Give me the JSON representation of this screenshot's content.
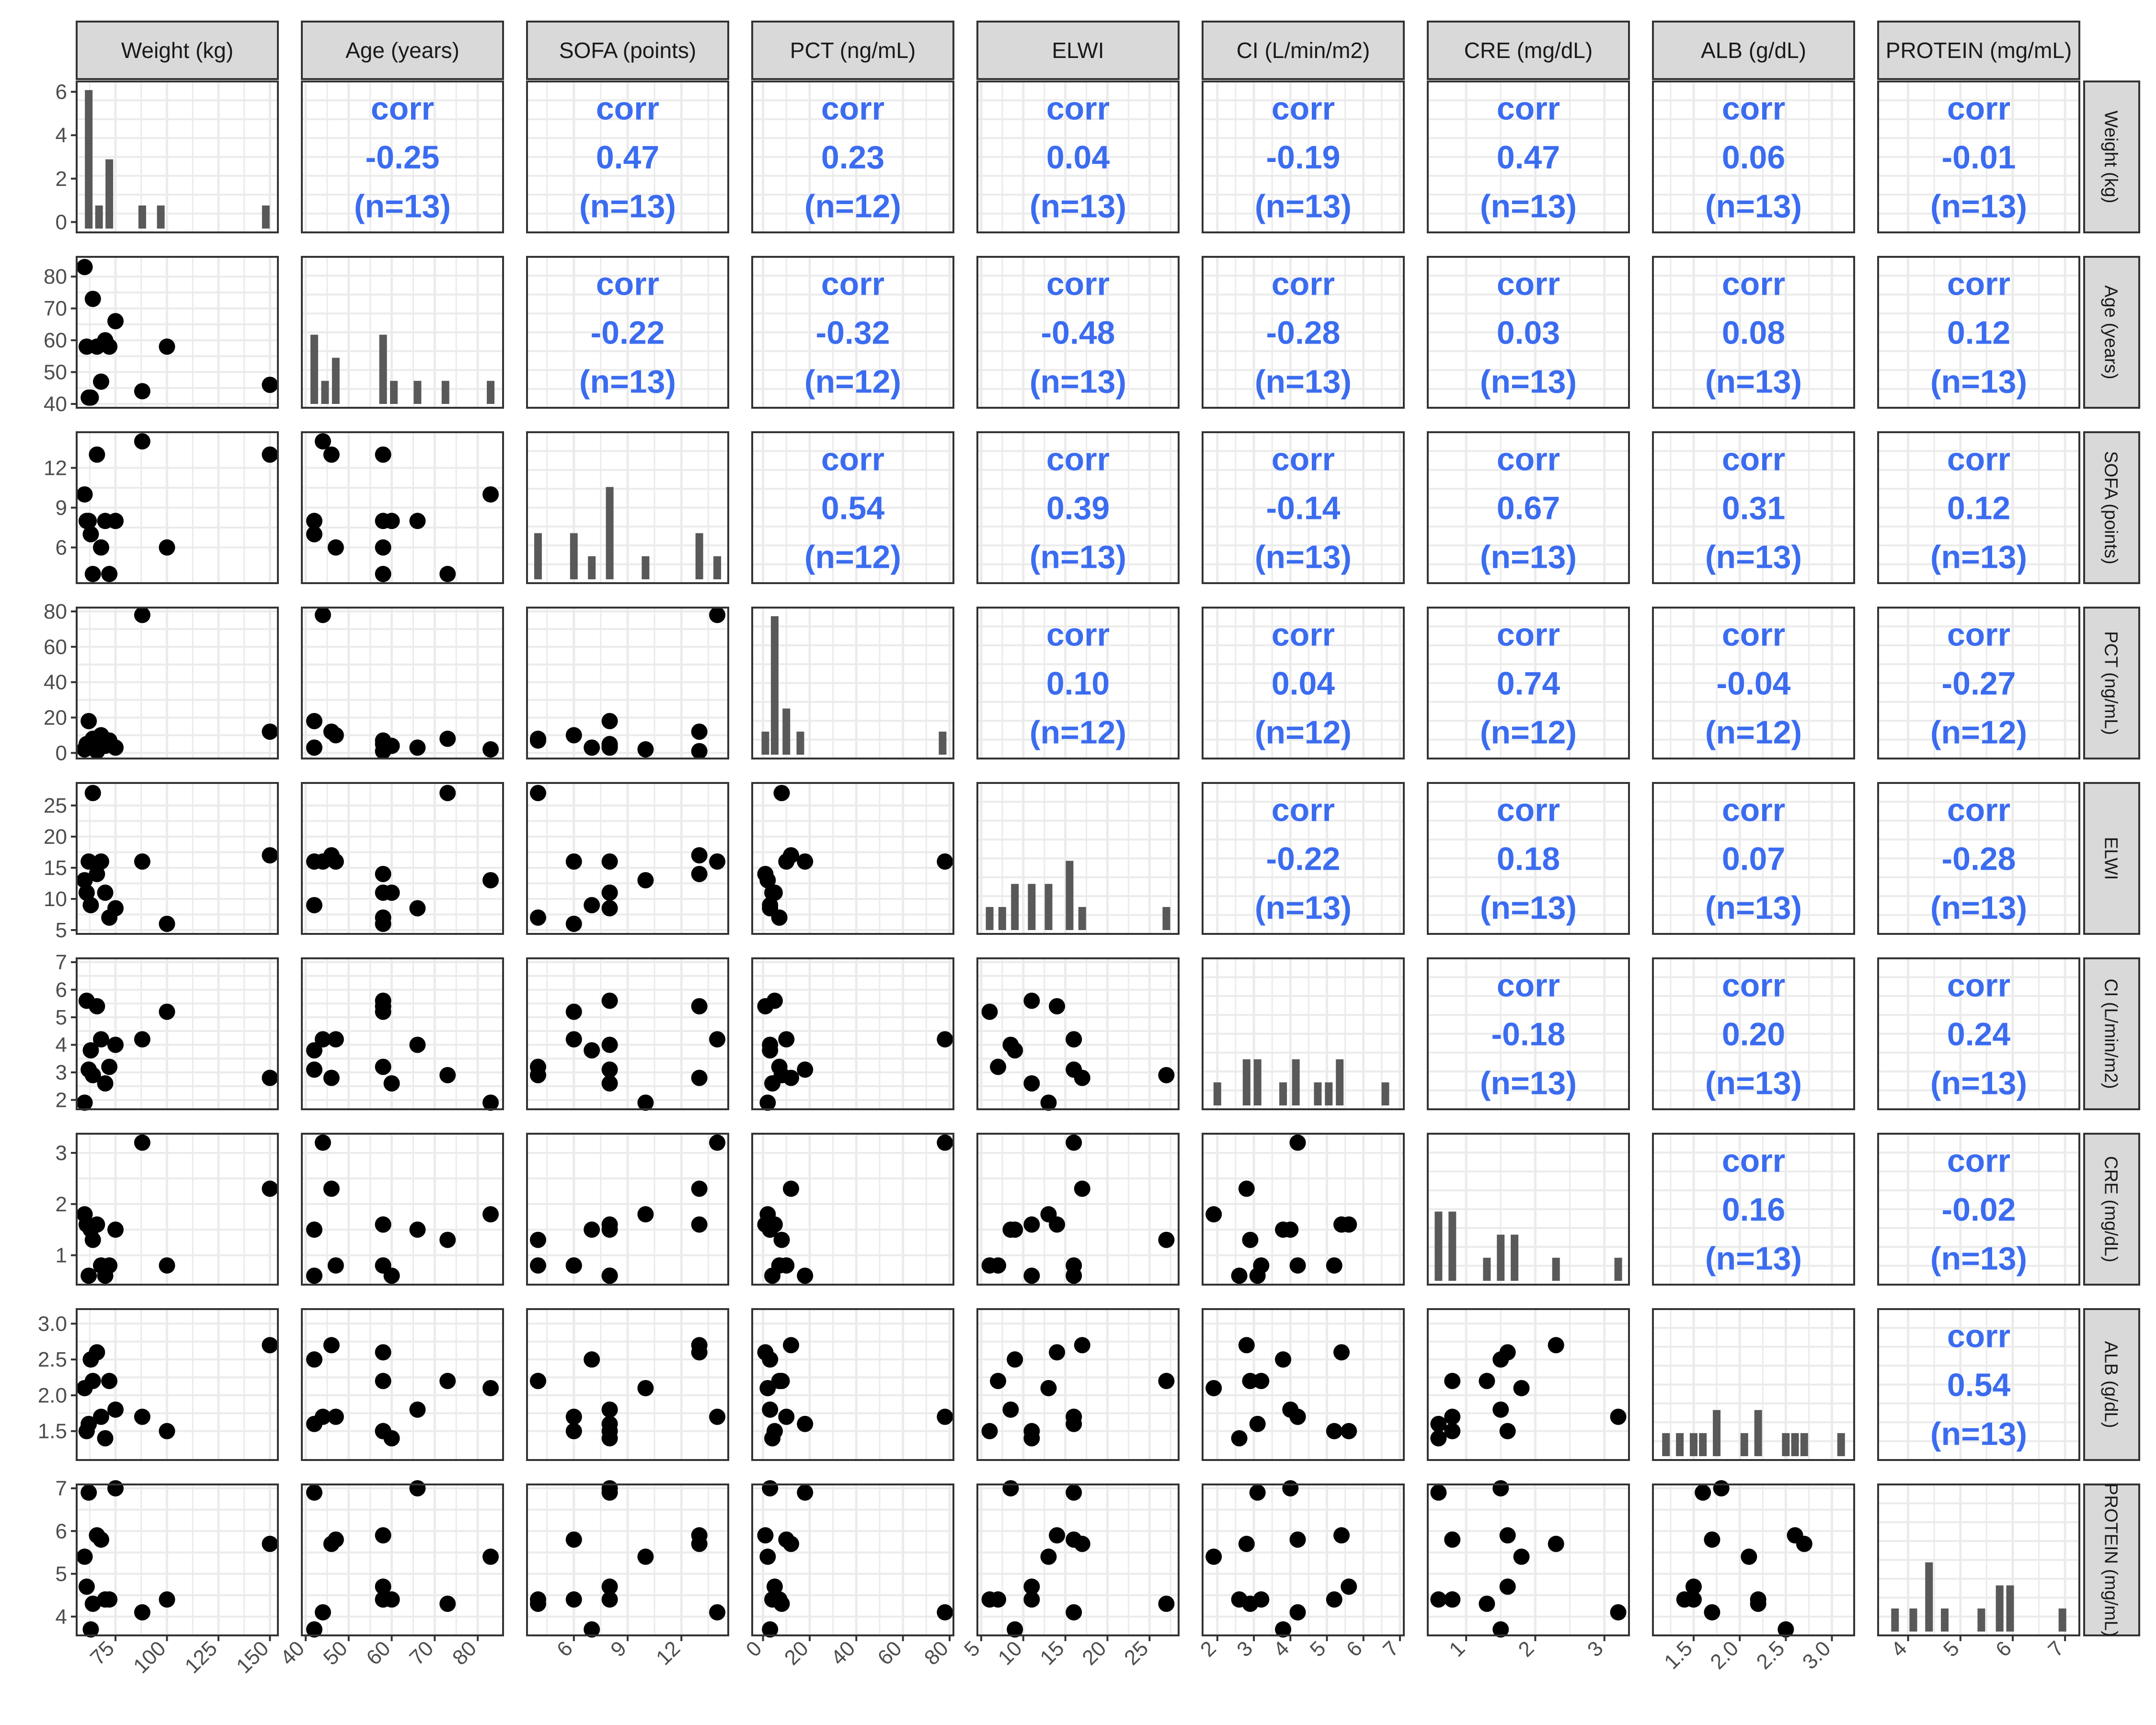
{
  "chart_data": {
    "type": "scatter-matrix",
    "variables": [
      {
        "name": "Weight (kg)",
        "range": [
          58,
          152
        ],
        "ticks": [
          75,
          100,
          125,
          150
        ],
        "tick_labels": [
          "75",
          "100",
          "125",
          "150"
        ],
        "y_ticks": [
          0,
          2,
          4,
          6
        ],
        "y_tick_labels": [
          "0",
          "2",
          "4",
          "6"
        ]
      },
      {
        "name": "Age (years)",
        "range": [
          40,
          85
        ],
        "ticks": [
          40,
          50,
          60,
          70,
          80
        ],
        "tick_labels": [
          "40",
          "50",
          "60",
          "70",
          "80"
        ]
      },
      {
        "name": "SOFA (points)",
        "range": [
          3.6,
          14.4
        ],
        "ticks": [
          6,
          9,
          12
        ],
        "tick_labels": [
          "6",
          "9",
          "12"
        ]
      },
      {
        "name": "PCT (ng/mL)",
        "range": [
          -3,
          80
        ],
        "ticks": [
          0,
          20,
          40,
          60,
          80
        ],
        "tick_labels": [
          "0",
          "20",
          "40",
          "60",
          "80"
        ]
      },
      {
        "name": "ELWI",
        "range": [
          5,
          28
        ],
        "ticks": [
          5,
          10,
          15,
          20,
          25
        ],
        "tick_labels": [
          "5",
          "10",
          "15",
          "20",
          "25"
        ]
      },
      {
        "name": "CI (L/min/m2)",
        "range": [
          1.7,
          7.0
        ],
        "ticks": [
          2,
          3,
          4,
          5,
          6,
          7
        ],
        "tick_labels": [
          "2",
          "3",
          "4",
          "5",
          "6",
          "7"
        ]
      },
      {
        "name": "CRE (mg/dL)",
        "range": [
          0.5,
          3.3
        ],
        "ticks": [
          1,
          2,
          3
        ],
        "tick_labels": [
          "1",
          "2",
          "3"
        ]
      },
      {
        "name": "ALB (g/dL)",
        "range": [
          1.1,
          3.2
        ],
        "ticks": [
          1.5,
          2.0,
          2.5,
          3.0
        ],
        "tick_labels": [
          "1.5",
          "2.0",
          "2.5",
          "3.0"
        ]
      },
      {
        "name": "PROTEIN (mg/mL)",
        "range": [
          3.5,
          7.2
        ],
        "ticks": [
          4,
          5,
          6,
          7
        ],
        "tick_labels": [
          "4",
          "5",
          "6",
          "7"
        ]
      }
    ],
    "observations": [
      {
        "Weight (kg)": 60,
        "Age (years)": 83,
        "SOFA (points)": 10,
        "PCT (ng/mL)": 2,
        "ELWI": 13,
        "CI (L/min/m2)": 1.9,
        "CRE (mg/dL)": 1.8,
        "ALB (g/dL)": 2.1,
        "PROTEIN (mg/mL)": 5.4
      },
      {
        "Weight (kg)": 61,
        "Age (years)": 58,
        "SOFA (points)": 8,
        "PCT (ng/mL)": 5,
        "ELWI": 11,
        "CI (L/min/m2)": 5.6,
        "CRE (mg/dL)": 1.6,
        "ALB (g/dL)": 1.5,
        "PROTEIN (mg/mL)": 4.7
      },
      {
        "Weight (kg)": 62,
        "Age (years)": 42,
        "SOFA (points)": 8,
        "PCT (ng/mL)": 18,
        "ELWI": 16,
        "CI (L/min/m2)": 3.1,
        "CRE (mg/dL)": 0.6,
        "ALB (g/dL)": 1.6,
        "PROTEIN (mg/mL)": 6.9
      },
      {
        "Weight (kg)": 63,
        "Age (years)": 42,
        "SOFA (points)": 7,
        "PCT (ng/mL)": 3,
        "ELWI": 9,
        "CI (L/min/m2)": 3.8,
        "CRE (mg/dL)": 1.5,
        "ALB (g/dL)": 2.5,
        "PROTEIN (mg/mL)": 3.7
      },
      {
        "Weight (kg)": 64,
        "Age (years)": 73,
        "SOFA (points)": 4,
        "PCT (ng/mL)": 8,
        "ELWI": 27,
        "CI (L/min/m2)": 2.9,
        "CRE (mg/dL)": 1.3,
        "ALB (g/dL)": 2.2,
        "PROTEIN (mg/mL)": 4.3
      },
      {
        "Weight (kg)": 66,
        "Age (years)": 58,
        "SOFA (points)": 13,
        "PCT (ng/mL)": 1,
        "ELWI": 14,
        "CI (L/min/m2)": 5.4,
        "CRE (mg/dL)": 1.6,
        "ALB (g/dL)": 2.6,
        "PROTEIN (mg/mL)": 5.9
      },
      {
        "Weight (kg)": 68,
        "Age (years)": 47,
        "SOFA (points)": 6,
        "PCT (ng/mL)": 10,
        "ELWI": 16,
        "CI (L/min/m2)": 4.2,
        "CRE (mg/dL)": 0.8,
        "ALB (g/dL)": 1.7,
        "PROTEIN (mg/mL)": 5.8
      },
      {
        "Weight (kg)": 70,
        "Age (years)": 60,
        "SOFA (points)": 8,
        "PCT (ng/mL)": 4,
        "ELWI": 11,
        "CI (L/min/m2)": 2.6,
        "CRE (mg/dL)": 0.6,
        "ALB (g/dL)": 1.4,
        "PROTEIN (mg/mL)": 4.4
      },
      {
        "Weight (kg)": 72,
        "Age (years)": 58,
        "SOFA (points)": 4,
        "PCT (ng/mL)": 7,
        "ELWI": 7,
        "CI (L/min/m2)": 3.2,
        "CRE (mg/dL)": 0.8,
        "ALB (g/dL)": 2.2,
        "PROTEIN (mg/mL)": 4.4
      },
      {
        "Weight (kg)": 75,
        "Age (years)": 66,
        "SOFA (points)": 8,
        "PCT (ng/mL)": 3,
        "ELWI": 8.5,
        "CI (L/min/m2)": 4.0,
        "CRE (mg/dL)": 1.5,
        "ALB (g/dL)": 1.8,
        "PROTEIN (mg/mL)": 7.0
      },
      {
        "Weight (kg)": 88,
        "Age (years)": 44,
        "SOFA (points)": 14,
        "PCT (ng/mL)": 78,
        "ELWI": 16,
        "CI (L/min/m2)": 4.2,
        "CRE (mg/dL)": 3.2,
        "ALB (g/dL)": 1.7,
        "PROTEIN (mg/mL)": 4.1
      },
      {
        "Weight (kg)": 100,
        "Age (years)": 58,
        "SOFA (points)": 6,
        "CRE (mg/dL)": 0.8,
        "ELWI": 6,
        "CI (L/min/m2)": 5.2,
        "ALB (g/dL)": 1.5,
        "PROTEIN (mg/mL)": 4.4
      },
      {
        "Weight (kg)": 150,
        "Age (years)": 46,
        "SOFA (points)": 13,
        "PCT (ng/mL)": 12,
        "ELWI": 17,
        "CI (L/min/m2)": 2.8,
        "CRE (mg/dL)": 2.3,
        "ALB (g/dL)": 2.7,
        "PROTEIN (mg/mL)": 5.7
      }
    ],
    "correlations": [
      [
        "",
        "corr\n-0.25\n(n=13)",
        "corr\n0.47\n(n=13)",
        "corr\n0.23\n(n=12)",
        "corr\n0.04\n(n=13)",
        "corr\n-0.19\n(n=13)",
        "corr\n0.47\n(n=13)",
        "corr\n0.06\n(n=13)",
        "corr\n-0.01\n(n=13)"
      ],
      [
        "",
        "",
        "corr\n-0.22\n(n=13)",
        "corr\n-0.32\n(n=12)",
        "corr\n-0.48\n(n=13)",
        "corr\n-0.28\n(n=13)",
        "corr\n0.03\n(n=13)",
        "corr\n0.08\n(n=13)",
        "corr\n0.12\n(n=13)"
      ],
      [
        "",
        "",
        "",
        "corr\n0.54\n(n=12)",
        "corr\n0.39\n(n=13)",
        "corr\n-0.14\n(n=13)",
        "corr\n0.67\n(n=13)",
        "corr\n0.31\n(n=13)",
        "corr\n0.12\n(n=13)"
      ],
      [
        "",
        "",
        "",
        "",
        "corr\n0.10\n(n=12)",
        "corr\n0.04\n(n=12)",
        "corr\n0.74\n(n=12)",
        "corr\n-0.04\n(n=12)",
        "corr\n-0.27\n(n=12)"
      ],
      [
        "",
        "",
        "",
        "",
        "",
        "corr\n-0.22\n(n=13)",
        "corr\n0.18\n(n=13)",
        "corr\n0.07\n(n=13)",
        "corr\n-0.28\n(n=13)"
      ],
      [
        "",
        "",
        "",
        "",
        "",
        "",
        "corr\n-0.18\n(n=13)",
        "corr\n0.20\n(n=13)",
        "corr\n0.24\n(n=13)"
      ],
      [
        "",
        "",
        "",
        "",
        "",
        "",
        "",
        "corr\n0.16\n(n=13)",
        "corr\n-0.02\n(n=13)"
      ],
      [
        "",
        "",
        "",
        "",
        "",
        "",
        "",
        "",
        "corr\n0.54\n(n=13)"
      ],
      [
        "",
        "",
        "",
        "",
        "",
        "",
        "",
        "",
        ""
      ]
    ],
    "y_axis_ticks": [
      {
        "ticks": [
          0,
          2,
          4,
          6
        ],
        "labels": [
          "0",
          "2",
          "4",
          "6"
        ],
        "range": [
          -0.3,
          6.3
        ]
      },
      {
        "ticks": [
          40,
          50,
          60,
          70,
          80
        ],
        "labels": [
          "40",
          "50",
          "60",
          "70",
          "80"
        ],
        "range": [
          40,
          85
        ]
      },
      {
        "ticks": [
          6,
          9,
          12
        ],
        "labels": [
          "6",
          "9",
          "12"
        ],
        "range": [
          3.6,
          14.4
        ]
      },
      {
        "ticks": [
          0,
          20,
          40,
          60,
          80
        ],
        "labels": [
          "0",
          "20",
          "40",
          "60",
          "80"
        ],
        "range": [
          -1,
          80
        ]
      },
      {
        "ticks": [
          5,
          10,
          15,
          20,
          25
        ],
        "labels": [
          "5",
          "10",
          "15",
          "20",
          "25"
        ],
        "range": [
          5,
          28
        ]
      },
      {
        "ticks": [
          2,
          3,
          4,
          5,
          6,
          7
        ],
        "labels": [
          "2",
          "3",
          "4",
          "5",
          "6",
          "7"
        ],
        "range": [
          1.8,
          7.0
        ]
      },
      {
        "ticks": [
          1,
          2,
          3
        ],
        "labels": [
          "1",
          "2",
          "3"
        ],
        "range": [
          0.5,
          3.3
        ]
      },
      {
        "ticks": [
          1.5,
          2.0,
          2.5,
          3.0
        ],
        "labels": [
          "1.5",
          "2.0",
          "2.5",
          "3.0"
        ],
        "range": [
          1.15,
          3.15
        ]
      },
      {
        "ticks": [
          4,
          5,
          6,
          7
        ],
        "labels": [
          "4",
          "5",
          "6",
          "7"
        ],
        "range": [
          3.65,
          7.0
        ]
      }
    ],
    "histograms": [
      [
        {
          "x": 62,
          "c": 6
        },
        {
          "x": 67,
          "c": 1
        },
        {
          "x": 72,
          "c": 3
        },
        {
          "x": 88,
          "c": 1
        },
        {
          "x": 97,
          "c": 1
        },
        {
          "x": 148,
          "c": 1
        }
      ],
      [
        {
          "x": 42,
          "c": 3
        },
        {
          "x": 44.5,
          "c": 1
        },
        {
          "x": 47,
          "c": 2
        },
        {
          "x": 58,
          "c": 3
        },
        {
          "x": 60.5,
          "c": 1
        },
        {
          "x": 66,
          "c": 1
        },
        {
          "x": 72.5,
          "c": 1
        },
        {
          "x": 83,
          "c": 1
        }
      ],
      [
        {
          "x": 4,
          "c": 2
        },
        {
          "x": 6,
          "c": 2
        },
        {
          "x": 7,
          "c": 1
        },
        {
          "x": 8,
          "c": 4
        },
        {
          "x": 10,
          "c": 1
        },
        {
          "x": 13,
          "c": 2
        },
        {
          "x": 14,
          "c": 1
        }
      ],
      [
        {
          "x": 1,
          "c": 1
        },
        {
          "x": 5,
          "c": 6
        },
        {
          "x": 10,
          "c": 2
        },
        {
          "x": 16,
          "c": 1
        },
        {
          "x": 77,
          "c": 1
        }
      ],
      [
        {
          "x": 6,
          "c": 1
        },
        {
          "x": 7.5,
          "c": 1
        },
        {
          "x": 9,
          "c": 2
        },
        {
          "x": 11,
          "c": 2
        },
        {
          "x": 13,
          "c": 2
        },
        {
          "x": 15.5,
          "c": 3
        },
        {
          "x": 17,
          "c": 1
        },
        {
          "x": 27,
          "c": 1
        }
      ],
      [
        {
          "x": 2.0,
          "c": 1
        },
        {
          "x": 2.8,
          "c": 2
        },
        {
          "x": 3.1,
          "c": 2
        },
        {
          "x": 3.8,
          "c": 1
        },
        {
          "x": 4.15,
          "c": 2
        },
        {
          "x": 4.75,
          "c": 1
        },
        {
          "x": 5.05,
          "c": 1
        },
        {
          "x": 5.35,
          "c": 2
        },
        {
          "x": 6.6,
          "c": 1
        }
      ],
      [
        {
          "x": 0.6,
          "c": 3
        },
        {
          "x": 0.8,
          "c": 3
        },
        {
          "x": 1.3,
          "c": 1
        },
        {
          "x": 1.5,
          "c": 2
        },
        {
          "x": 1.7,
          "c": 2
        },
        {
          "x": 2.3,
          "c": 1
        },
        {
          "x": 3.2,
          "c": 1
        }
      ],
      [
        {
          "x": 1.2,
          "c": 1
        },
        {
          "x": 1.35,
          "c": 1
        },
        {
          "x": 1.5,
          "c": 1
        },
        {
          "x": 1.6,
          "c": 1
        },
        {
          "x": 1.75,
          "c": 2
        },
        {
          "x": 2.05,
          "c": 1
        },
        {
          "x": 2.2,
          "c": 2
        },
        {
          "x": 2.5,
          "c": 1
        },
        {
          "x": 2.6,
          "c": 1
        },
        {
          "x": 2.7,
          "c": 1
        },
        {
          "x": 3.1,
          "c": 1
        }
      ],
      [
        {
          "x": 3.75,
          "c": 1
        },
        {
          "x": 4.1,
          "c": 1
        },
        {
          "x": 4.4,
          "c": 3
        },
        {
          "x": 4.7,
          "c": 1
        },
        {
          "x": 5.4,
          "c": 1
        },
        {
          "x": 5.75,
          "c": 2
        },
        {
          "x": 5.95,
          "c": 2
        },
        {
          "x": 6.95,
          "c": 1
        }
      ]
    ],
    "hist_max": 6,
    "colors": {
      "point": "#000000",
      "bar": "#595959",
      "corr_text": "#3b6cf0",
      "strip_fill": "#d9d9d9",
      "grid": "#ebebeb",
      "panel_border": "#333333"
    },
    "grid": true
  }
}
